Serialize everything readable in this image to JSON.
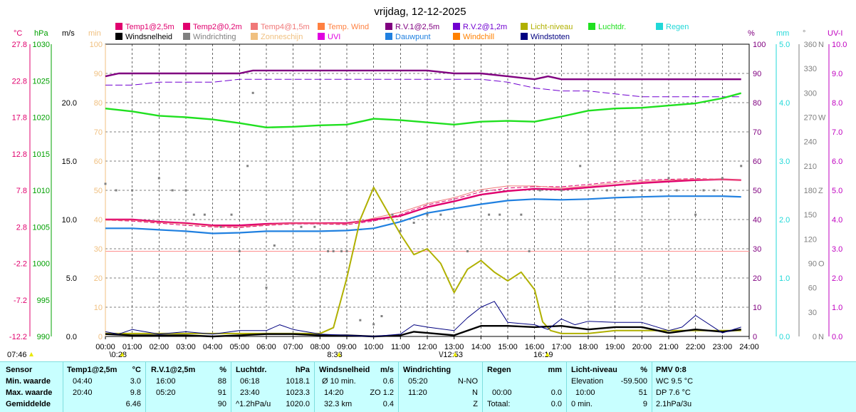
{
  "title": "vrijdag, 12-12-2025",
  "legend": [
    {
      "label": "Temp1@2,5m",
      "color": "#e0006e"
    },
    {
      "label": "Temp2@0,2m",
      "color": "#e0006e"
    },
    {
      "label": "Temp4@1,5m",
      "color": "#f07878"
    },
    {
      "label": "Temp. Wind",
      "color": "#ff8040"
    },
    {
      "label": "R.V.1@2,5m",
      "color": "#800080"
    },
    {
      "label": "R.V.2@1,2m",
      "color": "#7000d0"
    },
    {
      "label": "Licht-niveau",
      "color": "#b0b000"
    },
    {
      "label": "Luchtdr.",
      "color": "#20e020"
    },
    {
      "label": "Regen",
      "color": "#20d8d8"
    },
    {
      "label": "Windsnelheid",
      "color": "#000000"
    },
    {
      "label": "Windrichting",
      "color": "#808080"
    },
    {
      "label": "Zonneschijn",
      "color": "#f0c080"
    },
    {
      "label": "UVI",
      "color": "#e000e0"
    },
    {
      "label": "Dauwpunt",
      "color": "#2080e0"
    },
    {
      "label": "Windchill",
      "color": "#ff8000"
    },
    {
      "label": "Windstoten",
      "color": "#000080"
    }
  ],
  "axes": {
    "units": {
      "c": "°C",
      "hpa": "hPa",
      "ms": "m/s",
      "min": "min",
      "pct": "%",
      "mm": "mm",
      "deg": "°",
      "uv": "UV-I"
    },
    "celsius": [
      "27.8",
      "22.8",
      "17.8",
      "12.8",
      "7.8",
      "2.8",
      "-2.2",
      "-7.2",
      "-12.2"
    ],
    "hpa": [
      "1030",
      "1025",
      "1020",
      "1015",
      "1010",
      "1005",
      "1000",
      "995",
      "990"
    ],
    "ms": [
      "20.0",
      "15.0",
      "10.0",
      "5.0",
      "0.0"
    ],
    "minutes": [
      "100",
      "90",
      "80",
      "70",
      "60",
      "50",
      "40",
      "30",
      "20",
      "10",
      "0"
    ],
    "percent": [
      "100",
      "90",
      "80",
      "70",
      "60",
      "50",
      "40",
      "30",
      "20",
      "10",
      "0"
    ],
    "mm": [
      "5.0",
      "4.0",
      "3.0",
      "2.0",
      "1.0",
      "0.0"
    ],
    "degrees": [
      "360",
      "330",
      "300",
      "270",
      "240",
      "210",
      "180",
      "150",
      "120",
      "90",
      "60",
      "30",
      "0"
    ],
    "compass": [
      "N",
      "W",
      "Z",
      "O",
      "N"
    ],
    "uvi": [
      "10.0",
      "9.0",
      "8.0",
      "7.0",
      "6.0",
      "5.0",
      "4.0",
      "3.0",
      "2.0",
      "1.0",
      "0.0"
    ],
    "hours": [
      "00:00",
      "01:00",
      "02:00",
      "03:00",
      "04:00",
      "05:00",
      "06:00",
      "07:00",
      "08:00",
      "09:00",
      "10:00",
      "11:00",
      "12:00",
      "13:00",
      "14:00",
      "15:00",
      "16:00",
      "17:00",
      "18:00",
      "19:00",
      "20:00",
      "21:00",
      "22:00",
      "23:00",
      "24:00"
    ]
  },
  "markers": [
    {
      "label": "07:46",
      "hour": 0.0
    },
    {
      "label": "\\0:28",
      "hour": 0.47
    },
    {
      "label": "8:33",
      "hour": 8.55
    },
    {
      "label": "\\/12:53",
      "hour": 12.88
    },
    {
      "label": "16:19",
      "hour": 16.32
    }
  ],
  "chart_data": {
    "type": "line",
    "title": "vrijdag, 12-12-2025",
    "x_unit": "hour",
    "x_range": [
      0,
      24
    ],
    "series": [
      {
        "name": "Temp1@2,5m",
        "axis": "celsius",
        "x": [
          0,
          1,
          2,
          3,
          4,
          5,
          6,
          7,
          8,
          9,
          10,
          11,
          12,
          13,
          14,
          15,
          16,
          17,
          18,
          19,
          20,
          21,
          22,
          23,
          23.7
        ],
        "values": [
          3.8,
          3.8,
          3.5,
          3.3,
          3.0,
          3.0,
          3.2,
          3.3,
          3.3,
          3.3,
          3.8,
          4.3,
          5.5,
          6.3,
          7.2,
          7.7,
          8.0,
          7.9,
          8.2,
          8.5,
          8.8,
          9.0,
          9.2,
          9.3,
          9.2
        ]
      },
      {
        "name": "Temp2@0,2m",
        "axis": "celsius",
        "x": [
          0,
          1,
          2,
          3,
          4,
          5,
          6,
          7,
          8,
          9,
          10,
          11,
          12,
          13,
          14,
          15,
          16,
          17,
          18,
          19,
          20,
          21,
          22,
          23,
          23.7
        ],
        "values": [
          3.7,
          3.6,
          3.3,
          3.0,
          2.8,
          2.7,
          3.0,
          3.2,
          3.2,
          3.1,
          3.6,
          4.5,
          5.8,
          6.6,
          7.6,
          8.1,
          8.3,
          8.3,
          8.6,
          9.0,
          9.2,
          9.3,
          9.4,
          9.3,
          9.2
        ]
      },
      {
        "name": "Temp4@1,5m",
        "axis": "celsius",
        "x": [
          0,
          1,
          2,
          3,
          4,
          5,
          6,
          7,
          8,
          9,
          10,
          11,
          12,
          13,
          14,
          15,
          16,
          17,
          18,
          19,
          20,
          21,
          22,
          23,
          23.7
        ],
        "values": [
          3.7,
          3.7,
          3.4,
          3.2,
          2.9,
          2.8,
          3.1,
          3.3,
          3.3,
          3.2,
          4.0,
          4.8,
          6.0,
          6.8,
          7.9,
          8.4,
          8.4,
          8.1,
          8.4,
          8.8,
          9.0,
          9.2,
          9.3,
          9.3,
          9.2
        ]
      },
      {
        "name": "Dauwpunt",
        "axis": "celsius",
        "x": [
          0,
          1,
          2,
          3,
          4,
          5,
          6,
          7,
          8,
          9,
          10,
          11,
          12,
          13,
          14,
          15,
          16,
          17,
          18,
          19,
          20,
          21,
          22,
          23,
          23.7
        ],
        "values": [
          2.6,
          2.6,
          2.4,
          2.2,
          1.9,
          2.0,
          2.2,
          2.2,
          2.2,
          2.3,
          2.6,
          3.5,
          4.7,
          5.3,
          5.9,
          6.4,
          6.6,
          6.5,
          6.6,
          6.8,
          6.9,
          7.0,
          7.0,
          7.0,
          6.9
        ]
      },
      {
        "name": "R.V.1@2,5m",
        "axis": "percent",
        "x": [
          0,
          0.5,
          1,
          2,
          3,
          4,
          5,
          5.5,
          6,
          7,
          8,
          9,
          10,
          11,
          12,
          13,
          14,
          15,
          16,
          16.5,
          17,
          18,
          19,
          20,
          21,
          22,
          23,
          23.7
        ],
        "values": [
          89,
          90,
          90,
          90,
          90,
          90,
          90,
          91,
          91,
          91,
          91,
          91,
          91,
          91,
          91,
          90,
          90,
          89,
          88,
          89,
          88,
          88,
          88,
          88,
          88,
          88,
          88,
          88
        ]
      },
      {
        "name": "R.V.2@1,2m",
        "axis": "percent",
        "x": [
          0,
          1,
          2,
          3,
          4,
          5,
          6,
          7,
          8,
          9,
          10,
          11,
          12,
          13,
          14,
          15,
          15.5,
          16,
          17,
          18,
          19,
          20,
          21,
          22,
          23,
          23.7
        ],
        "values": [
          86,
          86,
          87,
          87,
          87,
          88,
          88,
          88,
          88,
          88,
          88,
          88,
          88,
          88,
          88,
          87,
          86,
          85,
          84,
          84,
          83,
          82,
          82,
          82,
          82,
          82
        ]
      },
      {
        "name": "Luchtdr.",
        "axis": "hpa",
        "x": [
          0,
          1,
          2,
          3,
          4,
          5,
          6,
          7,
          8,
          9,
          10,
          11,
          12,
          13,
          14,
          15,
          16,
          17,
          18,
          19,
          20,
          21,
          22,
          23,
          23.7
        ],
        "values": [
          1021.2,
          1020.8,
          1020.2,
          1020.0,
          1019.7,
          1019.2,
          1018.6,
          1018.7,
          1018.9,
          1019.0,
          1019.8,
          1019.6,
          1019.3,
          1019.0,
          1019.4,
          1019.5,
          1019.4,
          1020.1,
          1020.9,
          1021.2,
          1021.3,
          1021.6,
          1021.9,
          1022.6,
          1023.3
        ]
      },
      {
        "name": "Licht-niveau",
        "axis": "percent",
        "x": [
          0,
          1,
          2,
          3,
          4,
          5,
          6,
          7,
          8,
          8.5,
          9,
          9.5,
          10,
          10.5,
          11,
          11.5,
          12,
          12.5,
          13,
          13.5,
          14,
          14.5,
          15,
          15.5,
          16,
          16.3,
          16.6,
          17,
          18,
          19,
          20,
          21,
          22,
          23,
          23.7
        ],
        "values": [
          1,
          1,
          1,
          1,
          1,
          1,
          1,
          1,
          1,
          3,
          20,
          40,
          51,
          43,
          35,
          28,
          30,
          25,
          15,
          23,
          26,
          22,
          19,
          22,
          16,
          5,
          2,
          1,
          1,
          2,
          2,
          2,
          2,
          2,
          2
        ]
      },
      {
        "name": "Windsnelheid",
        "axis": "ms",
        "x": [
          0,
          1,
          2,
          3,
          4,
          5,
          6,
          7,
          8,
          9,
          10,
          11,
          11.5,
          12,
          13,
          14,
          15,
          16,
          17,
          18,
          19,
          20,
          21,
          22,
          23,
          23.7
        ],
        "values": [
          0.2,
          0.1,
          0.1,
          0.1,
          0.0,
          0.1,
          0.2,
          0.2,
          0.1,
          0.1,
          0.0,
          0.1,
          0.4,
          0.3,
          0.1,
          0.9,
          0.9,
          0.8,
          0.9,
          0.6,
          0.8,
          0.8,
          0.3,
          0.6,
          0.4,
          0.6
        ]
      },
      {
        "name": "Windstoten",
        "axis": "ms",
        "x": [
          0,
          0.5,
          1,
          2,
          3,
          4,
          5,
          6,
          6.5,
          7,
          8,
          9,
          10,
          11,
          11.5,
          12,
          13,
          13.5,
          14,
          14.5,
          15,
          16,
          16.5,
          17,
          17.5,
          18,
          19,
          20,
          21,
          21.5,
          22,
          23,
          23.7
        ],
        "values": [
          0.4,
          0.2,
          0.6,
          0.2,
          0.4,
          0.2,
          0.5,
          0.5,
          1.0,
          0.6,
          0.2,
          0.1,
          0.0,
          0.2,
          1.0,
          0.8,
          0.5,
          1.6,
          2.5,
          3.0,
          1.2,
          1.0,
          0.6,
          1.5,
          1.0,
          1.3,
          1.2,
          1.2,
          0.5,
          0.8,
          1.8,
          0.3,
          0.8
        ]
      },
      {
        "name": "Windrichting",
        "type": "scatter",
        "axis": "degrees",
        "x": [
          0,
          0.4,
          1,
          2,
          2.5,
          3,
          3.3,
          3.7,
          4.3,
          4.7,
          5,
          5.3,
          5.5,
          6,
          6.3,
          7.3,
          7.8,
          8.3,
          8.5,
          8.8,
          9,
          9.5,
          10,
          10.3,
          10.7,
          11,
          11.5,
          12,
          12.5,
          13.5,
          14.3,
          14.7,
          15.5,
          15.8,
          16.2,
          17,
          17.7,
          18.2,
          18.7,
          19,
          19.3,
          19.7,
          20,
          20.3,
          20.7,
          21,
          21.3,
          22,
          22.3,
          22.7,
          23,
          23.3,
          23.7
        ],
        "values": [
          188,
          180,
          180,
          195,
          180,
          180,
          150,
          150,
          135,
          150,
          105,
          210,
          300,
          60,
          112,
          135,
          135,
          105,
          105,
          105,
          105,
          20,
          15,
          25,
          150,
          130,
          140,
          150,
          150,
          105,
          150,
          150,
          150,
          105,
          180,
          180,
          210,
          180,
          180,
          180,
          180,
          180,
          180,
          180,
          180,
          195,
          180,
          150,
          180,
          180,
          195,
          180,
          210
        ]
      }
    ]
  },
  "stats": {
    "headers": {
      "sensor": "Sensor",
      "temp": "Temp1@2,5m",
      "temp_unit": "°C",
      "rv": "R.V.1@2,5m",
      "rv_unit": "%",
      "press": "Luchtdr.",
      "press_unit": "hPa",
      "wind": "Windsnelheid",
      "wind_unit": "m/s",
      "dir": "Windrichting",
      "rain": "Regen",
      "rain_unit": "mm",
      "light": "Licht-niveau",
      "light_unit": "%",
      "pmv": "PMV 0:8"
    },
    "rows": [
      {
        "label": "Min. waarde",
        "temp_t": "04:40",
        "temp_v": "3.0",
        "rv_t": "16:00",
        "rv_v": "88",
        "press_t": "06:18",
        "press_v": "1018.1",
        "wind_t": "Ø 10 min.",
        "wind_v": "0.6",
        "dir_t": "05:20",
        "dir_v": "N-NO",
        "rain_t": "",
        "rain_v": "",
        "light_t": "Elevation",
        "light_v": "-59.500",
        "pmv": "WC 9.5 °C"
      },
      {
        "label": "Max. waarde",
        "temp_t": "20:40",
        "temp_v": "9.8",
        "rv_t": "05:20",
        "rv_v": "91",
        "press_t": "23:40",
        "press_v": "1023.3",
        "wind_t": "14:20",
        "wind_v": "ZO 1.2",
        "dir_t": "11:20",
        "dir_v": "N",
        "rain_t": "00:00",
        "rain_v": "0.0",
        "light_t": "10:00",
        "light_v": "51",
        "pmv": "DP 7.6 °C"
      },
      {
        "label": "Gemiddelde",
        "temp_t": "",
        "temp_v": "6.46",
        "rv_t": "",
        "rv_v": "90",
        "press_t": "^1.2hPa/u",
        "press_v": "1020.0",
        "wind_t": "32.3 km",
        "wind_v": "0.4",
        "dir_t": "",
        "dir_v": "Z",
        "rain_t": "Totaal:",
        "rain_v": "0.0",
        "light_t": "0 min.",
        "light_v": "9",
        "pmv": "2.1hPa/3u"
      }
    ]
  }
}
